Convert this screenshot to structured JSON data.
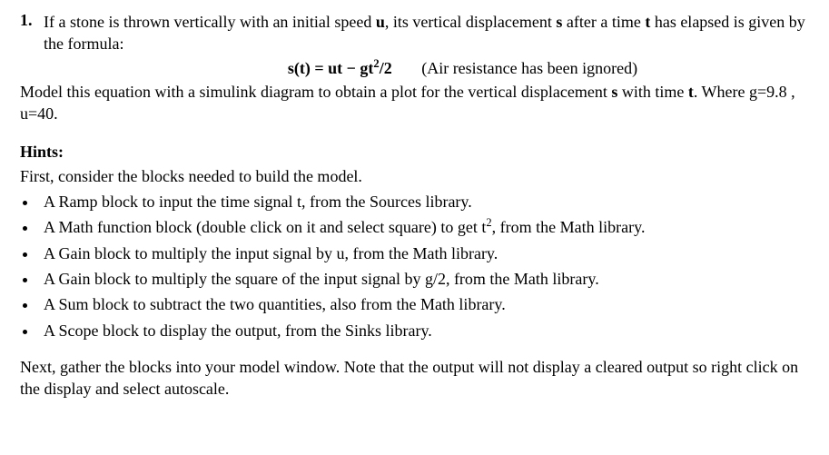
{
  "question": {
    "number": "1.",
    "intro_pre": "If a stone is thrown vertically with an initial speed ",
    "u": "u",
    "intro_mid": ", its vertical displacement ",
    "s": "s",
    "intro_post": " after a time ",
    "t": "t",
    "intro_end": " has elapsed is given by the formula:",
    "formula": "s(t) = ut − gt",
    "formula_exp": "2",
    "formula_tail": "/2",
    "formula_note": "(Air resistance has been ignored)",
    "task_pre": "Model this equation with a simulink diagram to obtain a plot for the vertical displacement ",
    "task_s": "s",
    "task_mid": " with time ",
    "task_t": "t",
    "task_end": ". Where g=9.8 , u=40."
  },
  "hints_label": "Hints:",
  "hints_intro": "First, consider the blocks needed to build the model.",
  "hints": [
    {
      "pre": "A Ramp block to input the time signal t, from the Sources library.",
      "has_sup": false
    },
    {
      "pre": "A Math function block (double click on it and select square) to get t",
      "sup": "2",
      "post": ", from the Math library.",
      "has_sup": true
    },
    {
      "pre": "A Gain block to multiply the input signal by u, from the Math library.",
      "has_sup": false
    },
    {
      "pre": "A Gain block to multiply the square of the input signal by g/2, from the Math library.",
      "has_sup": false
    },
    {
      "pre": "A Sum block to subtract the two quantities, also from the Math library.",
      "has_sup": false
    },
    {
      "pre": "A Scope block to display the output, from the Sinks library.",
      "has_sup": false
    }
  ],
  "closing": "Next, gather the blocks into your model window. Note that the output will not display a cleared output so right click on the display and select autoscale."
}
